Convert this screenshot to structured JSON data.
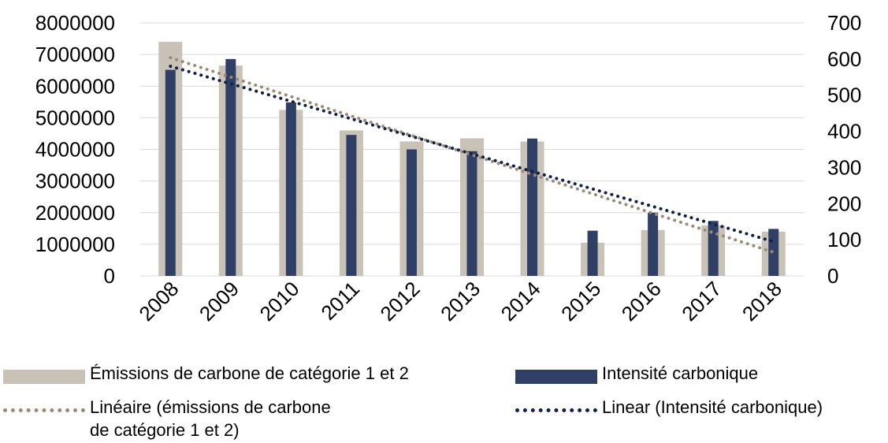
{
  "chart_data": {
    "type": "bar",
    "categories": [
      "2008",
      "2009",
      "2010",
      "2011",
      "2012",
      "2013",
      "2014",
      "2015",
      "2016",
      "2017",
      "2018"
    ],
    "series": [
      {
        "name": "Émissions de carbone de catégorie 1 et 2",
        "axis": "left",
        "values": [
          7400000,
          6650000,
          5250000,
          4600000,
          4250000,
          4350000,
          4250000,
          1050000,
          1450000,
          1600000,
          1400000
        ]
      },
      {
        "name": "Intensité carbonique",
        "axis": "right",
        "values": [
          570,
          600,
          480,
          390,
          350,
          345,
          380,
          125,
          175,
          152,
          130
        ]
      }
    ],
    "trendlines": [
      {
        "name": "Linéaire (émissions de carbone\nde catégorie 1 et 2)",
        "of": "Émissions de carbone de catégorie 1 et 2",
        "start": 6900000,
        "end": 750000
      },
      {
        "name": "Linear (Intensité carbonique)",
        "of": "Intensité carbonique",
        "start": 580,
        "end": 95
      }
    ],
    "y_left": {
      "ticks": [
        "0",
        "1000000",
        "2000000",
        "3000000",
        "4000000",
        "5000000",
        "6000000",
        "7000000",
        "8000000"
      ],
      "ylim": [
        0,
        8000000
      ]
    },
    "y_right": {
      "ticks": [
        "0",
        "100",
        "200",
        "300",
        "400",
        "500",
        "600",
        "700"
      ],
      "ylim": [
        0,
        700
      ]
    },
    "grid": true,
    "legend_position": "bottom",
    "colors": {
      "emissions_bar": "#c9c2b6",
      "intensity_bar": "#2f3f66",
      "emissions_trend": "#9b8b74",
      "intensity_trend": "#10214a",
      "grid": "#d9d9d9"
    }
  }
}
